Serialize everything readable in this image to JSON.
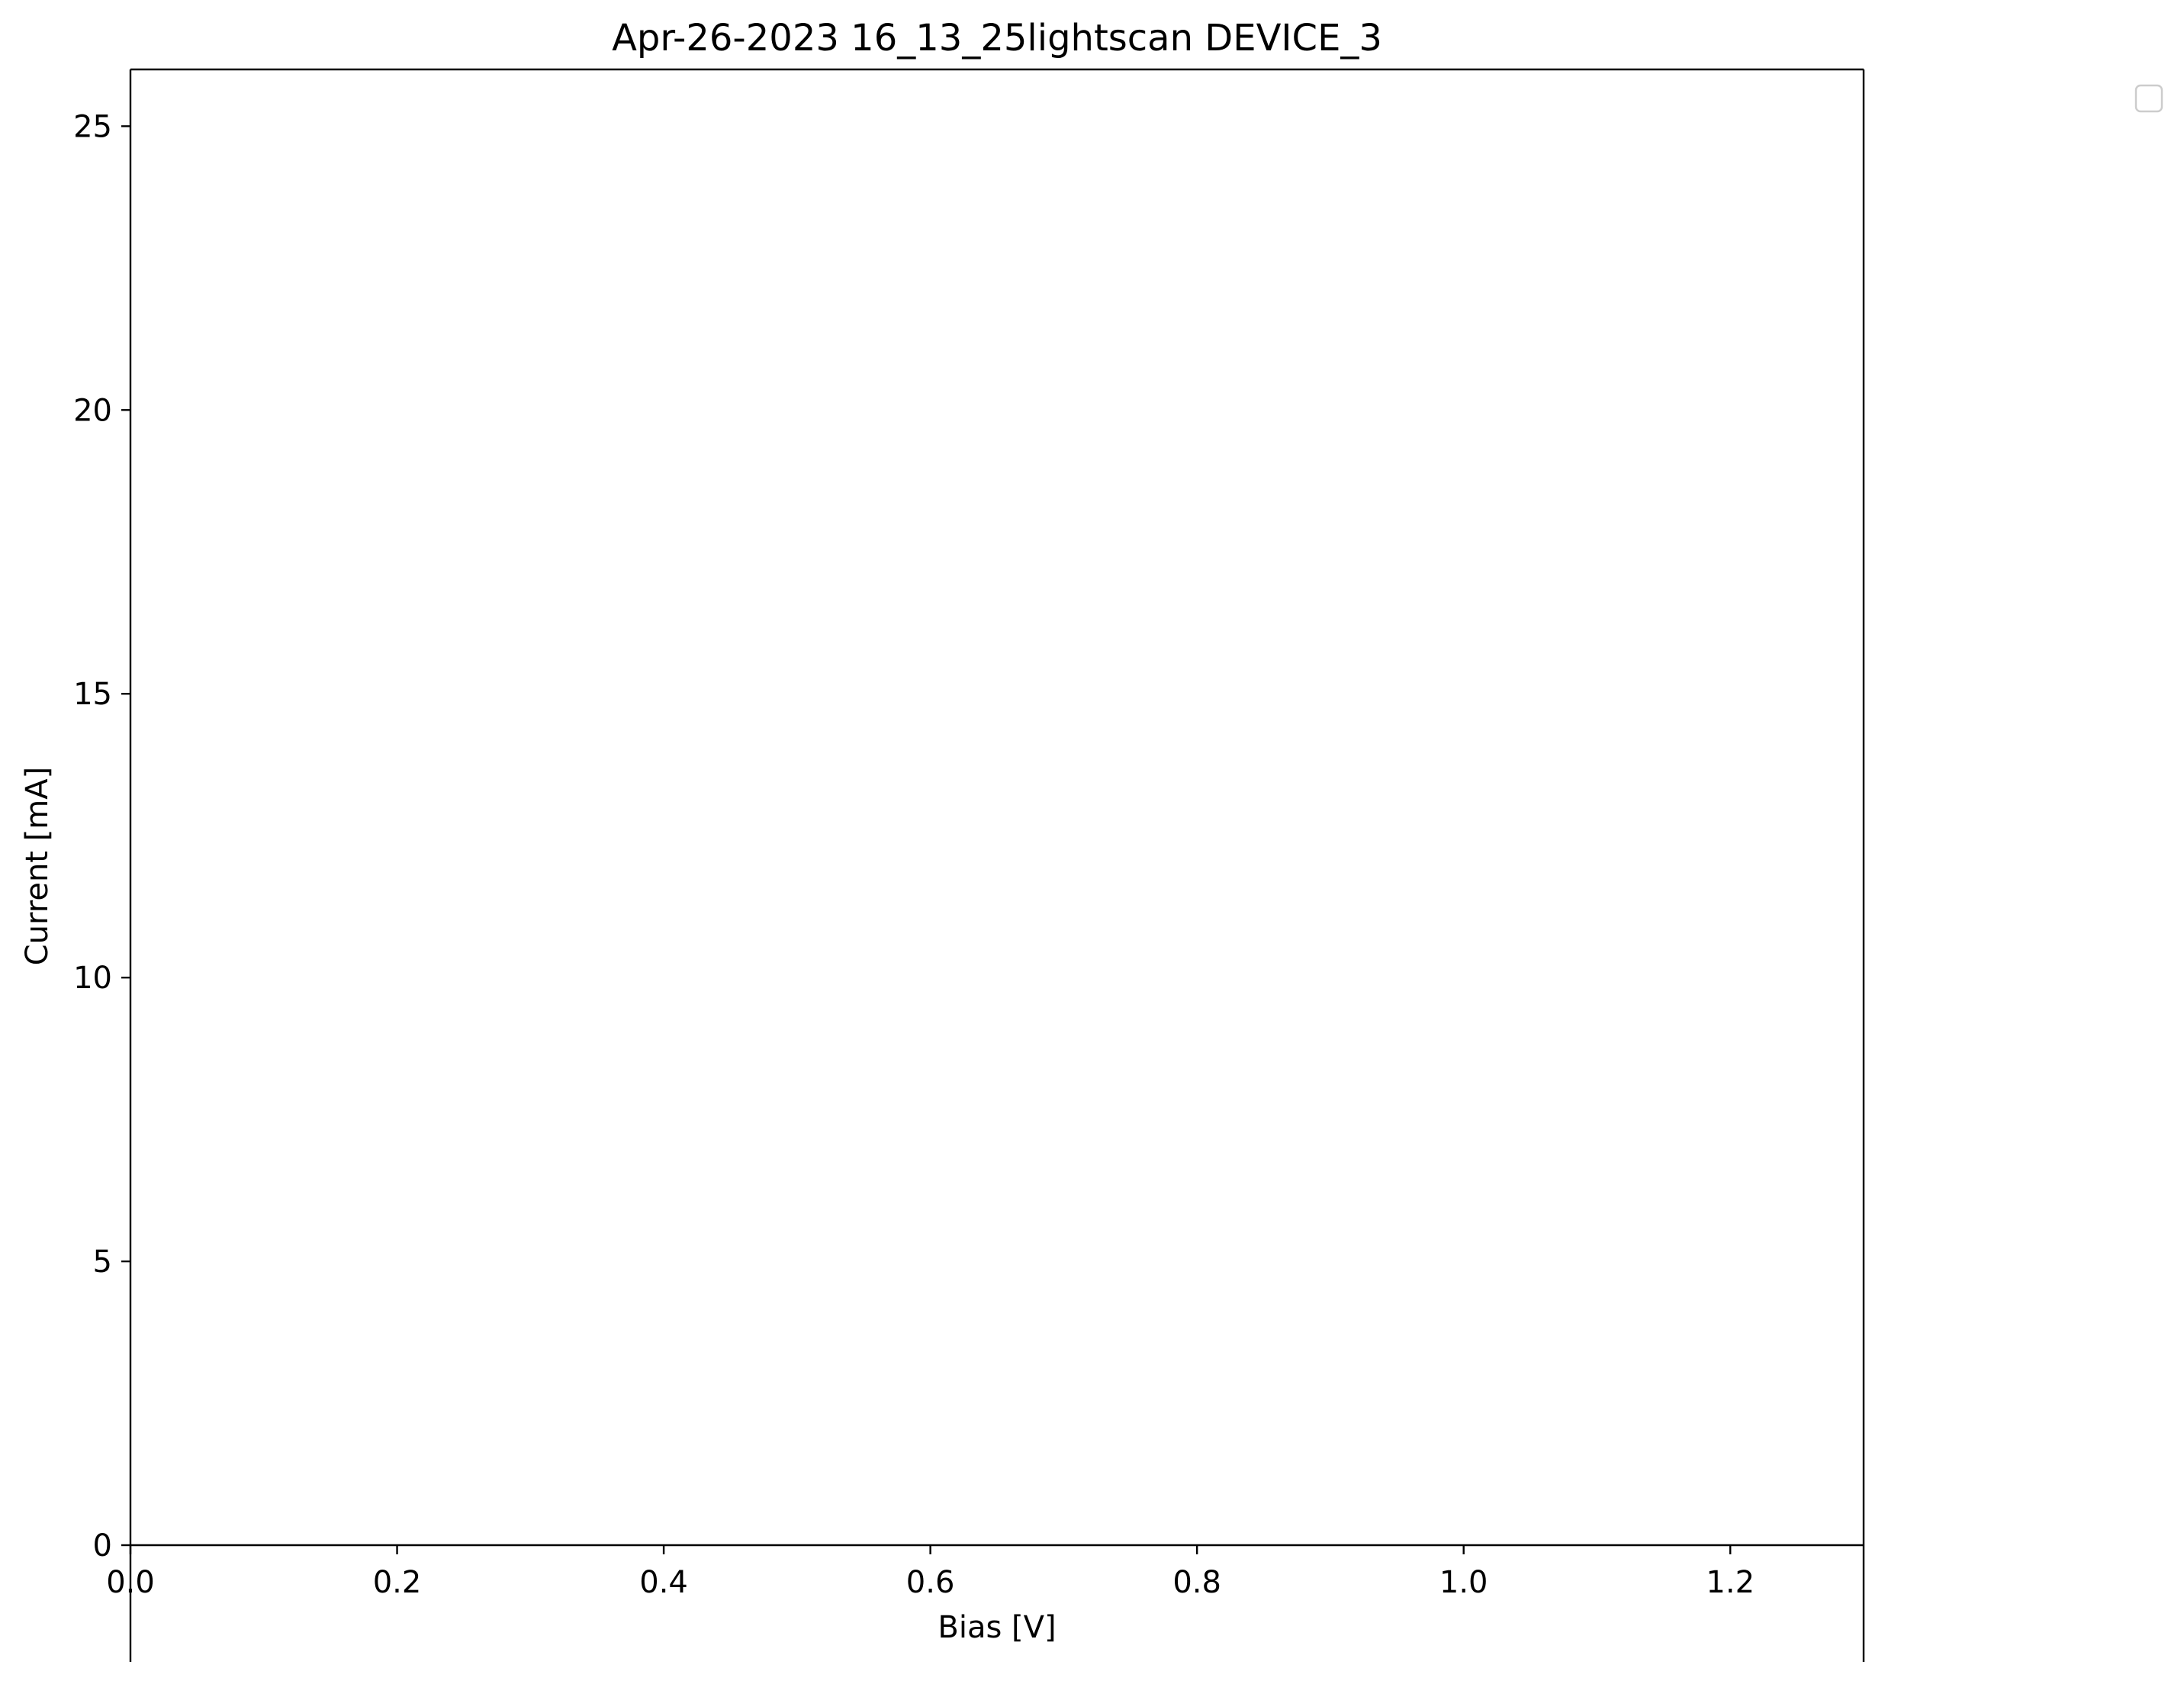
{
  "chart_data": {
    "type": "line",
    "title": "Apr-26-2023 16_13_25lightscan DEVICE_3",
    "xlabel": "Bias [V]",
    "ylabel": "Current [mA]",
    "xlim": [
      0.0,
      1.3
    ],
    "ylim": [
      0,
      26
    ],
    "x_ticks": [
      "0.0",
      "0.2",
      "0.4",
      "0.6",
      "0.8",
      "1.0",
      "1.2"
    ],
    "y_ticks": [
      "0",
      "5",
      "10",
      "15",
      "20",
      "25"
    ],
    "series": [],
    "grid": false,
    "legend": {
      "placement": "outside-top-right",
      "entries": []
    }
  }
}
